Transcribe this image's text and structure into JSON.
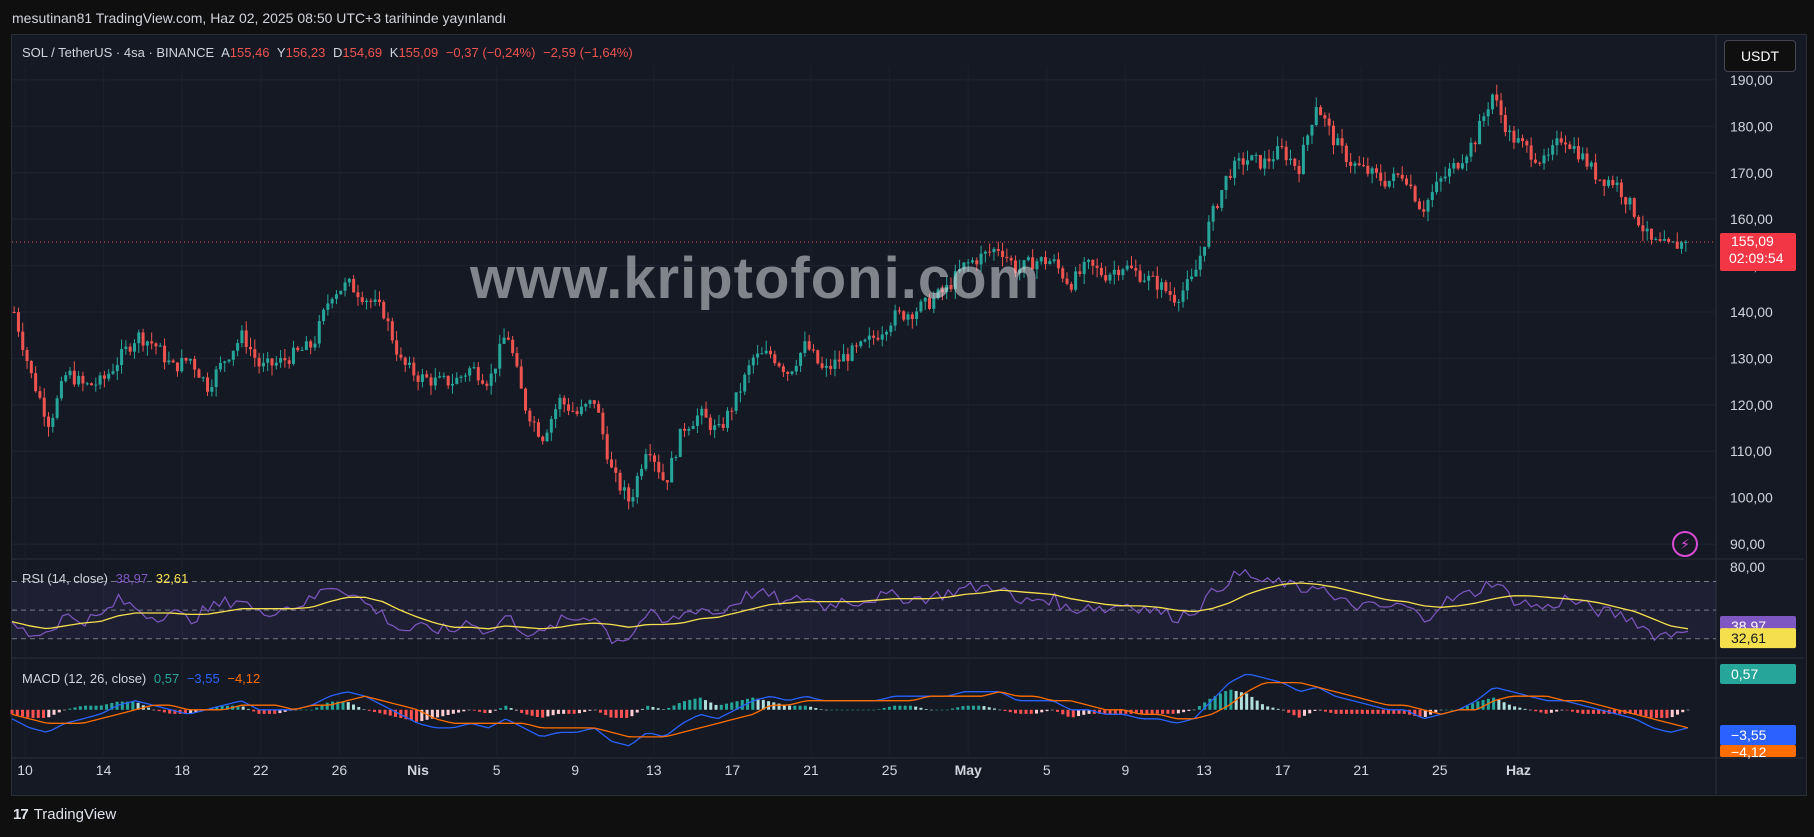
{
  "header": {
    "published_text": "mesutinan81 TradingView.com, Haz 02, 2025 08:50 UTC+3 tarihinde yayınlandı"
  },
  "symbol_legend": {
    "symbol": "SOL / TetherUS · 4sa · BINANCE",
    "open_label": "A",
    "open": "155,46",
    "high_label": "Y",
    "high": "156,23",
    "low_label": "D",
    "low": "154,69",
    "close_label": "K",
    "close": "155,09",
    "change": "−0,37 (−0,24%)",
    "change2": "−2,59 (−1,64%)"
  },
  "currency_button": "USDT",
  "watermark": "www.kriptofoni.com",
  "price_badge": {
    "price": "155,09",
    "countdown": "02:09:54"
  },
  "rsi_legend": {
    "name": "RSI (14, close)",
    "rsi": "38,97",
    "ma": "32,61"
  },
  "macd_legend": {
    "name": "MACD (12, 26, close)",
    "hist": "0,57",
    "macd": "−3,55",
    "signal": "−4,12"
  },
  "rsi_axis_top": "80,00",
  "rsi_badges": {
    "rsi": "38,97",
    "ma": "32,61"
  },
  "macd_badges": {
    "hist": "0,57",
    "macd": "−3,55",
    "signal": "−4,12"
  },
  "footer": {
    "brand": "TradingView",
    "brand_mark": "17"
  },
  "colors": {
    "up": "#26a69a",
    "down": "#ef5350",
    "rsi": "#7e57c2",
    "rsi_ma": "#f4e04d",
    "macd": "#2962ff",
    "signal": "#ff6d00",
    "bg": "#151924"
  },
  "chart_data": [
    {
      "type": "candlestick",
      "title": "SOL / TetherUS · 4sa · BINANCE",
      "ylim": [
        87,
        193
      ],
      "y_ticks": [
        "90,00",
        "100,00",
        "110,00",
        "120,00",
        "130,00",
        "140,00",
        "150,00",
        "160,00",
        "170,00",
        "180,00",
        "190,00"
      ],
      "x_ticks": [
        "10",
        "14",
        "18",
        "22",
        "26",
        "Nis",
        "5",
        "9",
        "13",
        "17",
        "21",
        "25",
        "May",
        "5",
        "9",
        "13",
        "17",
        "21",
        "25",
        "Haz"
      ],
      "last_price": 155.09,
      "price_path": [
        [
          0,
          140
        ],
        [
          1,
          126
        ],
        [
          2,
          116
        ],
        [
          3,
          127
        ],
        [
          4,
          124
        ],
        [
          5,
          125
        ],
        [
          6,
          130
        ],
        [
          7,
          135
        ],
        [
          8,
          133
        ],
        [
          9,
          128
        ],
        [
          10,
          130
        ],
        [
          11,
          124
        ],
        [
          12,
          130
        ],
        [
          13,
          135
        ],
        [
          14,
          128
        ],
        [
          15,
          129
        ],
        [
          16,
          131
        ],
        [
          17,
          133
        ],
        [
          18,
          144
        ],
        [
          19,
          146
        ],
        [
          20,
          143
        ],
        [
          21,
          140
        ],
        [
          22,
          129
        ],
        [
          23,
          126
        ],
        [
          24,
          125
        ],
        [
          25,
          125
        ],
        [
          26,
          128
        ],
        [
          27,
          125
        ],
        [
          28,
          136
        ],
        [
          29,
          120
        ],
        [
          30,
          113
        ],
        [
          31,
          121
        ],
        [
          32,
          118
        ],
        [
          33,
          121
        ],
        [
          34,
          105
        ],
        [
          35,
          99
        ],
        [
          36,
          112
        ],
        [
          37,
          103
        ],
        [
          38,
          115
        ],
        [
          39,
          118
        ],
        [
          40,
          114
        ],
        [
          41,
          121
        ],
        [
          42,
          130
        ],
        [
          43,
          131
        ],
        [
          44,
          127
        ],
        [
          45,
          133
        ],
        [
          46,
          127
        ],
        [
          47,
          130
        ],
        [
          48,
          132
        ],
        [
          49,
          135
        ],
        [
          50,
          139
        ],
        [
          51,
          140
        ],
        [
          52,
          142
        ],
        [
          53,
          145
        ],
        [
          54,
          150
        ],
        [
          55,
          152
        ],
        [
          56,
          154
        ],
        [
          57,
          149
        ],
        [
          58,
          151
        ],
        [
          59,
          151
        ],
        [
          60,
          146
        ],
        [
          61,
          150
        ],
        [
          62,
          148
        ],
        [
          63,
          150
        ],
        [
          64,
          148
        ],
        [
          65,
          146
        ],
        [
          66,
          143
        ],
        [
          67,
          147
        ],
        [
          68,
          160
        ],
        [
          69,
          170
        ],
        [
          70,
          173
        ],
        [
          71,
          172
        ],
        [
          72,
          175
        ],
        [
          73,
          171
        ],
        [
          74,
          185
        ],
        [
          75,
          177
        ],
        [
          76,
          172
        ],
        [
          77,
          170
        ],
        [
          78,
          168
        ],
        [
          79,
          170
        ],
        [
          80,
          162
        ],
        [
          81,
          168
        ],
        [
          82,
          172
        ],
        [
          83,
          177
        ],
        [
          84,
          187
        ],
        [
          85,
          178
        ],
        [
          86,
          175
        ],
        [
          87,
          172
        ],
        [
          88,
          178
        ],
        [
          89,
          174
        ],
        [
          90,
          169
        ],
        [
          91,
          168
        ],
        [
          92,
          162
        ],
        [
          93,
          155
        ],
        [
          94,
          154
        ],
        [
          95,
          155
        ]
      ],
      "path_x_max": 95
    },
    {
      "type": "line",
      "title": "RSI (14, close)",
      "ylim": [
        18,
        85
      ],
      "levels": [
        70,
        50,
        30
      ],
      "series": [
        {
          "name": "RSI",
          "values": [
            40,
            33,
            35,
            46,
            43,
            45,
            57,
            52,
            45,
            49,
            43,
            50,
            55,
            58,
            47,
            51,
            53,
            57,
            68,
            64,
            55,
            47,
            36,
            37,
            37,
            35,
            44,
            33,
            46,
            36,
            32,
            42,
            44,
            47,
            30,
            31,
            48,
            40,
            47,
            52,
            47,
            56,
            62,
            60,
            54,
            60,
            52,
            57,
            56,
            59,
            60,
            58,
            59,
            62,
            65,
            66,
            67,
            54,
            58,
            58,
            49,
            54,
            50,
            55,
            52,
            49,
            45,
            50,
            61,
            72,
            76,
            68,
            70,
            63,
            69,
            56,
            54,
            52,
            52,
            53,
            43,
            55,
            59,
            63,
            71,
            58,
            54,
            51,
            58,
            54,
            49,
            47,
            43,
            33,
            33,
            39
          ]
        },
        {
          "name": "MA",
          "values": [
            42,
            39,
            37,
            39,
            41,
            42,
            46,
            48,
            48,
            48,
            47,
            47,
            49,
            51,
            51,
            51,
            51,
            52,
            56,
            59,
            59,
            56,
            50,
            45,
            41,
            38,
            38,
            37,
            39,
            38,
            37,
            38,
            40,
            41,
            40,
            38,
            40,
            40,
            41,
            44,
            45,
            48,
            51,
            54,
            55,
            56,
            56,
            56,
            56,
            57,
            58,
            58,
            58,
            59,
            61,
            62,
            64,
            63,
            62,
            61,
            58,
            56,
            54,
            53,
            53,
            52,
            50,
            49,
            51,
            55,
            61,
            65,
            68,
            69,
            68,
            66,
            63,
            60,
            57,
            56,
            53,
            52,
            53,
            55,
            58,
            60,
            60,
            59,
            58,
            57,
            55,
            52,
            49,
            44,
            39,
            37
          ]
        }
      ]
    },
    {
      "type": "line",
      "title": "MACD (12, 26, close)",
      "ylim": [
        -10,
        11
      ],
      "series": [
        {
          "name": "MACD",
          "values": [
            -2,
            -4,
            -5,
            -3,
            -2,
            -1,
            1,
            2,
            1,
            0,
            -1,
            0,
            1,
            2,
            0,
            0,
            0,
            1,
            3,
            4,
            3,
            1,
            -1,
            -3,
            -4,
            -4,
            -3,
            -4,
            -2,
            -4,
            -6,
            -5,
            -5,
            -4,
            -7,
            -8,
            -5,
            -6,
            -3,
            -1,
            -2,
            0,
            2,
            3,
            2,
            3,
            2,
            2,
            2,
            2,
            3,
            3,
            3,
            3,
            4,
            4,
            4,
            2,
            2,
            2,
            0,
            0,
            -1,
            -1,
            -2,
            -2,
            -3,
            -2,
            2,
            6,
            8,
            7,
            6,
            4,
            5,
            3,
            2,
            1,
            0,
            0,
            -2,
            -1,
            0,
            2,
            5,
            4,
            3,
            2,
            2,
            1,
            0,
            -1,
            -2,
            -4,
            -5,
            -4
          ]
        },
        {
          "name": "Signal",
          "values": [
            -1,
            -2,
            -3,
            -3,
            -3,
            -2,
            -1,
            0,
            1,
            1,
            0,
            0,
            0,
            1,
            1,
            1,
            0,
            1,
            1,
            2,
            3,
            2,
            1,
            0,
            -2,
            -3,
            -3,
            -3,
            -3,
            -3,
            -4,
            -4,
            -4,
            -4,
            -5,
            -6,
            -6,
            -6,
            -5,
            -4,
            -3,
            -2,
            -1,
            1,
            1,
            2,
            2,
            2,
            2,
            2,
            2,
            2,
            3,
            3,
            3,
            3,
            4,
            3,
            3,
            2,
            2,
            1,
            0,
            0,
            -1,
            -1,
            -2,
            -2,
            -1,
            1,
            4,
            6,
            6,
            6,
            5,
            4,
            3,
            2,
            1,
            1,
            0,
            -1,
            0,
            0,
            2,
            3,
            3,
            3,
            2,
            2,
            1,
            0,
            -1,
            -2,
            -3,
            -4
          ]
        }
      ]
    }
  ]
}
